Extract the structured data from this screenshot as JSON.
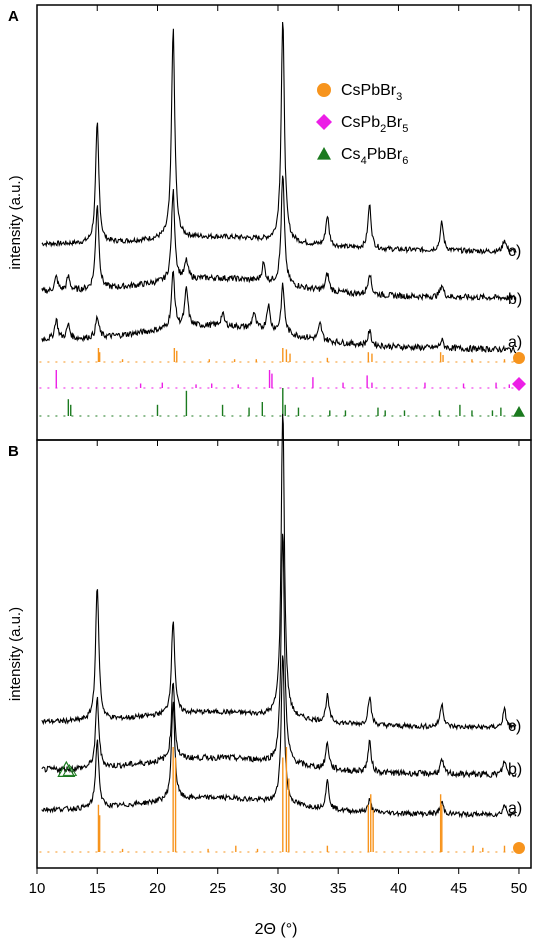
{
  "chart_data": [
    {
      "type": "line",
      "panel_label": "A",
      "ylabel": "intensity (a.u.)",
      "xlim": [
        10,
        51
      ],
      "series": [
        {
          "name": "c)",
          "peaks": [
            {
              "x": 15.0,
              "h": 120
            },
            {
              "x": 21.3,
              "h": 210
            },
            {
              "x": 30.4,
              "h": 222
            },
            {
              "x": 34.1,
              "h": 30
            },
            {
              "x": 37.6,
              "h": 44
            },
            {
              "x": 43.6,
              "h": 28
            },
            {
              "x": 48.8,
              "h": 12
            }
          ]
        },
        {
          "name": "b)",
          "peaks": [
            {
              "x": 11.6,
              "h": 14
            },
            {
              "x": 12.6,
              "h": 14
            },
            {
              "x": 15.0,
              "h": 86
            },
            {
              "x": 21.3,
              "h": 90
            },
            {
              "x": 22.4,
              "h": 18
            },
            {
              "x": 28.8,
              "h": 18
            },
            {
              "x": 30.4,
              "h": 110
            },
            {
              "x": 34.1,
              "h": 18
            },
            {
              "x": 37.6,
              "h": 22
            },
            {
              "x": 43.6,
              "h": 12
            }
          ]
        },
        {
          "name": "a)",
          "peaks": [
            {
              "x": 11.6,
              "h": 20
            },
            {
              "x": 12.6,
              "h": 14
            },
            {
              "x": 15.0,
              "h": 20
            },
            {
              "x": 21.3,
              "h": 56
            },
            {
              "x": 22.4,
              "h": 38
            },
            {
              "x": 25.4,
              "h": 12
            },
            {
              "x": 28.0,
              "h": 16
            },
            {
              "x": 29.2,
              "h": 26
            },
            {
              "x": 30.4,
              "h": 48
            },
            {
              "x": 33.5,
              "h": 16
            },
            {
              "x": 37.6,
              "h": 14
            },
            {
              "x": 43.6,
              "h": 8
            }
          ]
        }
      ],
      "reference_patterns": [
        {
          "name": "CsPbBr3",
          "marker": "circle",
          "color": "#f7941d",
          "sticks": [
            [
              15.1,
              1.0
            ],
            [
              15.2,
              0.7
            ],
            [
              17.1,
              0.2
            ],
            [
              21.4,
              1.0
            ],
            [
              21.6,
              0.8
            ],
            [
              24.3,
              0.2
            ],
            [
              26.4,
              0.2
            ],
            [
              28.2,
              0.2
            ],
            [
              30.4,
              1.0
            ],
            [
              30.7,
              0.9
            ],
            [
              31.0,
              0.6
            ],
            [
              34.1,
              0.3
            ],
            [
              37.5,
              0.7
            ],
            [
              37.8,
              0.6
            ],
            [
              43.5,
              0.7
            ],
            [
              43.7,
              0.5
            ],
            [
              46.1,
              0.2
            ],
            [
              48.8,
              0.2
            ],
            [
              49.6,
              0.15
            ]
          ]
        },
        {
          "name": "CsPb2Br5",
          "marker": "diamond",
          "color": "#ec1ee6",
          "sticks": [
            [
              11.6,
              1.0
            ],
            [
              18.6,
              0.25
            ],
            [
              20.4,
              0.3
            ],
            [
              23.2,
              0.2
            ],
            [
              24.5,
              0.25
            ],
            [
              26.7,
              0.2
            ],
            [
              29.3,
              1.0
            ],
            [
              29.5,
              0.8
            ],
            [
              32.9,
              0.6
            ],
            [
              35.4,
              0.3
            ],
            [
              37.4,
              0.7
            ],
            [
              37.8,
              0.3
            ],
            [
              42.2,
              0.3
            ],
            [
              45.4,
              0.25
            ],
            [
              48.1,
              0.3
            ],
            [
              49.2,
              0.2
            ]
          ]
        },
        {
          "name": "Cs4PbBr6",
          "marker": "triangle",
          "color": "#1b7a1f",
          "sticks": [
            [
              12.6,
              0.6
            ],
            [
              12.8,
              0.4
            ],
            [
              20.0,
              0.4
            ],
            [
              22.4,
              0.9
            ],
            [
              25.4,
              0.4
            ],
            [
              27.6,
              0.3
            ],
            [
              28.7,
              0.5
            ],
            [
              30.4,
              1.0
            ],
            [
              30.6,
              0.4
            ],
            [
              31.7,
              0.3
            ],
            [
              34.3,
              0.2
            ],
            [
              35.6,
              0.2
            ],
            [
              38.3,
              0.3
            ],
            [
              38.9,
              0.2
            ],
            [
              40.5,
              0.2
            ],
            [
              43.4,
              0.2
            ],
            [
              45.1,
              0.4
            ],
            [
              46.1,
              0.2
            ],
            [
              47.8,
              0.2
            ],
            [
              48.5,
              0.3
            ]
          ]
        }
      ],
      "legend": [
        {
          "label": "CsPbBr",
          "sub": "3",
          "suffix": "",
          "label2": "",
          "marker": "circle",
          "color": "#f7941d"
        },
        {
          "label": "CsPb",
          "sub": "2",
          "label2": "Br",
          "sub2": "5",
          "marker": "diamond",
          "color": "#ec1ee6"
        },
        {
          "label": "Cs",
          "sub": "4",
          "label2": "PbBr",
          "sub2": "6",
          "marker": "triangle",
          "color": "#1b7a1f"
        }
      ],
      "legend_position": "top-right"
    },
    {
      "type": "line",
      "panel_label": "B",
      "ylabel": "intensity (a.u.)",
      "xlabel": "2Θ (°)",
      "xlim": [
        10,
        51
      ],
      "xticks": [
        10,
        15,
        20,
        25,
        30,
        35,
        40,
        45,
        50
      ],
      "series": [
        {
          "name": "c)",
          "peaks": [
            {
              "x": 15.0,
              "h": 135
            },
            {
              "x": 21.3,
              "h": 95
            },
            {
              "x": 30.4,
              "h": 310
            },
            {
              "x": 34.1,
              "h": 26
            },
            {
              "x": 37.6,
              "h": 28
            },
            {
              "x": 43.6,
              "h": 24
            },
            {
              "x": 48.8,
              "h": 18
            }
          ]
        },
        {
          "name": "b)",
          "peaks": [
            {
              "x": 15.0,
              "h": 70
            },
            {
              "x": 21.3,
              "h": 80
            },
            {
              "x": 30.4,
              "h": 235
            },
            {
              "x": 34.1,
              "h": 26
            },
            {
              "x": 37.6,
              "h": 30
            },
            {
              "x": 43.6,
              "h": 14
            },
            {
              "x": 48.8,
              "h": 14
            }
          ]
        },
        {
          "name": "a)",
          "peaks": [
            {
              "x": 15.0,
              "h": 68
            },
            {
              "x": 21.3,
              "h": 100
            },
            {
              "x": 30.4,
              "h": 150
            },
            {
              "x": 34.1,
              "h": 28
            },
            {
              "x": 37.6,
              "h": 12
            },
            {
              "x": 43.6,
              "h": 12
            },
            {
              "x": 48.8,
              "h": 10
            }
          ]
        }
      ],
      "reference_patterns": [
        {
          "name": "CsPbBr3",
          "marker": "circle",
          "color": "#f7941d",
          "sticks": [
            [
              15.1,
              0.45
            ],
            [
              15.2,
              0.35
            ],
            [
              17.1,
              0.03
            ],
            [
              21.3,
              1.0
            ],
            [
              21.5,
              0.9
            ],
            [
              24.2,
              0.03
            ],
            [
              26.5,
              0.06
            ],
            [
              28.3,
              0.03
            ],
            [
              30.4,
              0.9
            ],
            [
              30.7,
              1.0
            ],
            [
              30.9,
              0.7
            ],
            [
              34.1,
              0.06
            ],
            [
              37.5,
              0.45
            ],
            [
              37.7,
              0.55
            ],
            [
              37.9,
              0.4
            ],
            [
              43.5,
              0.55
            ],
            [
              43.6,
              0.45
            ],
            [
              46.2,
              0.06
            ],
            [
              47.0,
              0.04
            ],
            [
              48.8,
              0.06
            ],
            [
              49.7,
              0.04
            ]
          ]
        }
      ],
      "annotation": {
        "marker": "triangle-outline",
        "color": "#1b7a1f",
        "x": 12.6
      }
    }
  ]
}
